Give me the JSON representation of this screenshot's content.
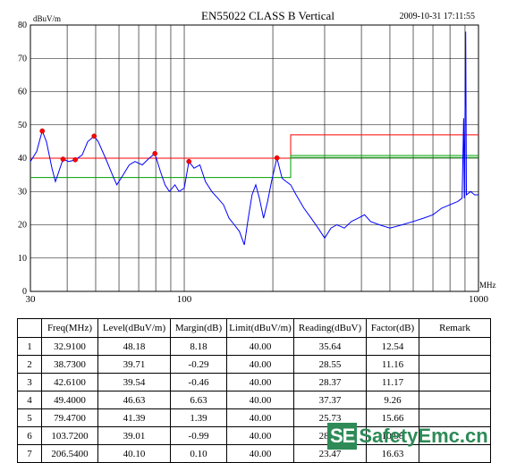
{
  "chart_data": {
    "type": "line",
    "title": "EN55022 CLASS B  Vertical",
    "timestamp": "2009-10-31 17:11:55",
    "ylabel": "dBuV/m",
    "xunit": "MHz",
    "x_scale": "log",
    "xlim": [
      30,
      1000
    ],
    "ylim": [
      0,
      80
    ],
    "x_tick_labels": [
      {
        "value": 30,
        "label": "30"
      },
      {
        "value": 100,
        "label": "100"
      },
      {
        "value": 1000,
        "label": "1000"
      }
    ],
    "y_ticks": [
      0,
      10,
      20,
      30,
      40,
      50,
      60,
      70,
      80
    ],
    "grid": true,
    "limit_lines": [
      {
        "color": "#ff0000",
        "points": [
          [
            30,
            40
          ],
          [
            230,
            40
          ],
          [
            230,
            47
          ],
          [
            1000,
            47
          ]
        ]
      },
      {
        "color": "#00a000",
        "points": [
          [
            30,
            34.2
          ],
          [
            230,
            34.2
          ],
          [
            230,
            40.8
          ],
          [
            1000,
            40.8
          ]
        ]
      },
      {
        "color": "#00a000",
        "points": [
          [
            230,
            40.2
          ],
          [
            1000,
            40.2
          ]
        ]
      }
    ],
    "series": [
      {
        "color": "#0000ff",
        "points": [
          [
            30,
            39
          ],
          [
            31.5,
            42
          ],
          [
            32.9,
            48.2
          ],
          [
            34,
            45
          ],
          [
            35.5,
            37
          ],
          [
            36.5,
            33
          ],
          [
            38.73,
            39.7
          ],
          [
            40.5,
            39
          ],
          [
            42.61,
            39.5
          ],
          [
            45,
            41
          ],
          [
            47,
            45
          ],
          [
            49.4,
            46.6
          ],
          [
            51,
            45
          ],
          [
            54,
            40
          ],
          [
            57,
            35
          ],
          [
            59,
            32
          ],
          [
            62,
            35
          ],
          [
            65,
            38
          ],
          [
            68,
            39
          ],
          [
            72,
            38
          ],
          [
            76,
            40
          ],
          [
            79.47,
            41.4
          ],
          [
            83,
            36
          ],
          [
            86,
            32
          ],
          [
            89,
            30
          ],
          [
            93,
            32
          ],
          [
            96,
            30
          ],
          [
            100,
            31
          ],
          [
            103.72,
            39.0
          ],
          [
            108,
            37
          ],
          [
            113,
            38
          ],
          [
            118,
            33
          ],
          [
            124,
            30
          ],
          [
            130,
            28
          ],
          [
            136,
            26
          ],
          [
            142,
            22
          ],
          [
            148,
            20
          ],
          [
            154,
            18
          ],
          [
            160,
            14
          ],
          [
            165,
            22
          ],
          [
            170,
            29
          ],
          [
            175,
            32
          ],
          [
            180,
            28
          ],
          [
            186,
            22
          ],
          [
            192,
            27
          ],
          [
            198,
            33
          ],
          [
            206.54,
            40.1
          ],
          [
            215,
            34
          ],
          [
            222,
            33
          ],
          [
            230,
            32
          ],
          [
            240,
            29
          ],
          [
            255,
            25
          ],
          [
            270,
            22
          ],
          [
            285,
            19
          ],
          [
            300,
            16
          ],
          [
            315,
            19
          ],
          [
            330,
            20
          ],
          [
            350,
            19
          ],
          [
            370,
            21
          ],
          [
            390,
            22
          ],
          [
            410,
            23
          ],
          [
            430,
            21
          ],
          [
            460,
            20
          ],
          [
            500,
            19
          ],
          [
            550,
            20
          ],
          [
            600,
            21
          ],
          [
            650,
            22
          ],
          [
            700,
            23
          ],
          [
            750,
            25
          ],
          [
            800,
            26
          ],
          [
            850,
            27
          ],
          [
            880,
            28
          ],
          [
            890,
            52
          ],
          [
            895,
            28
          ],
          [
            905,
            78
          ],
          [
            910,
            29
          ],
          [
            940,
            30
          ],
          [
            970,
            29
          ],
          [
            1000,
            29
          ]
        ]
      }
    ],
    "markers": [
      {
        "x": 32.91,
        "y": 48.18
      },
      {
        "x": 38.73,
        "y": 39.71
      },
      {
        "x": 42.61,
        "y": 39.54
      },
      {
        "x": 49.4,
        "y": 46.63
      },
      {
        "x": 79.47,
        "y": 41.39
      },
      {
        "x": 103.72,
        "y": 39.01
      },
      {
        "x": 206.54,
        "y": 40.1
      }
    ]
  },
  "table": {
    "headers": [
      "",
      "Freq(MHz)",
      "Level(dBuV/m)",
      "Margin(dB)",
      "Limit(dBuV/m)",
      "Reading(dBuV)",
      "Factor(dB)",
      "Remark"
    ],
    "rows": [
      [
        "1",
        "32.9100",
        "48.18",
        "8.18",
        "40.00",
        "35.64",
        "12.54",
        ""
      ],
      [
        "2",
        "38.7300",
        "39.71",
        "-0.29",
        "40.00",
        "28.55",
        "11.16",
        ""
      ],
      [
        "3",
        "42.6100",
        "39.54",
        "-0.46",
        "40.00",
        "28.37",
        "11.17",
        ""
      ],
      [
        "4",
        "49.4000",
        "46.63",
        "6.63",
        "40.00",
        "37.37",
        "9.26",
        ""
      ],
      [
        "5",
        "79.4700",
        "41.39",
        "1.39",
        "40.00",
        "25.73",
        "15.66",
        ""
      ],
      [
        "6",
        "103.7200",
        "39.01",
        "-0.99",
        "40.00",
        "28.03",
        "10.98",
        ""
      ],
      [
        "7",
        "206.5400",
        "40.10",
        "0.10",
        "40.00",
        "23.47",
        "16.63",
        ""
      ]
    ]
  },
  "watermark": {
    "badge": "SE",
    "text": "SafetyEmc.cn"
  }
}
